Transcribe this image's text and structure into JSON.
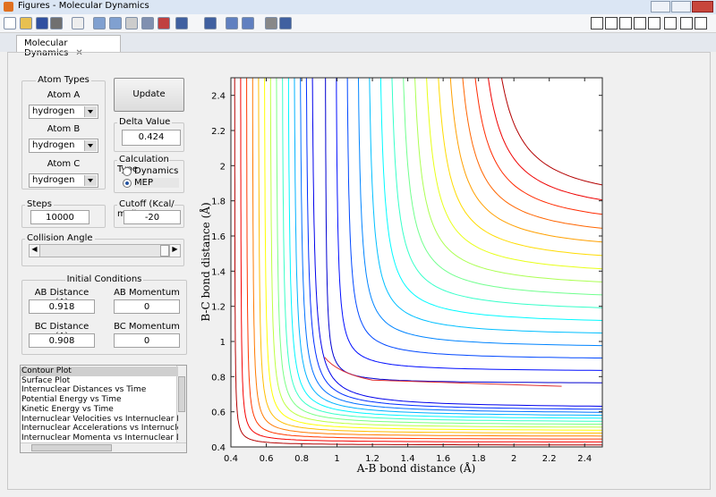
{
  "window": {
    "title": "Figures - Molecular Dynamics"
  },
  "tab": {
    "label": "Molecular Dynamics"
  },
  "controls": {
    "atom_types": {
      "title": "Atom Types",
      "atoms": [
        {
          "label": "Atom A",
          "value": "hydrogen"
        },
        {
          "label": "Atom B",
          "value": "hydrogen"
        },
        {
          "label": "Atom C",
          "value": "hydrogen"
        }
      ]
    },
    "update_button": "Update",
    "delta_value": {
      "title": "Delta Value",
      "value": "0.424"
    },
    "calculation_type": {
      "title": "Calculation Type",
      "options": [
        "Dynamics",
        "MEP"
      ],
      "selected": 1
    },
    "steps": {
      "title": "Steps",
      "value": "10000"
    },
    "cutoff": {
      "title": "Cutoff (Kcal/ mol)",
      "value": "-20"
    },
    "collision_angle": {
      "title": "Collision Angle"
    },
    "initial_conditions": {
      "title": "Initial Conditions",
      "fields": [
        {
          "label": "AB Distance (A)",
          "value": "0.918"
        },
        {
          "label": "AB Momentum",
          "value": "0"
        },
        {
          "label": "BC Distance (A)",
          "value": "0.908"
        },
        {
          "label": "BC Momentum",
          "value": "0"
        }
      ]
    },
    "plot_list": {
      "items": [
        "Contour Plot",
        "Surface Plot",
        "Internuclear Distances vs Time",
        "Potential Energy vs Time",
        "Kinetic Energy vs Time",
        "Internuclear Velocities vs Internuclear Distance",
        "Internuclear Accelerations vs Internuclear Distance",
        "Internuclear Momenta vs Internuclear Distance"
      ],
      "selected": 0
    }
  },
  "chart_data": {
    "type": "contour",
    "xlabel": "A-B bond distance (Å)",
    "ylabel": "B-C bond distance (Å)",
    "xlim": [
      0.4,
      2.5
    ],
    "ylim": [
      0.4,
      2.5
    ],
    "xticks": [
      0.4,
      0.6,
      0.8,
      1,
      1.2,
      1.4,
      1.6,
      1.8,
      2,
      2.2,
      2.4
    ],
    "yticks": [
      0.4,
      0.6,
      0.8,
      1,
      1.2,
      1.4,
      1.6,
      1.8,
      2,
      2.2,
      2.4
    ]
  }
}
